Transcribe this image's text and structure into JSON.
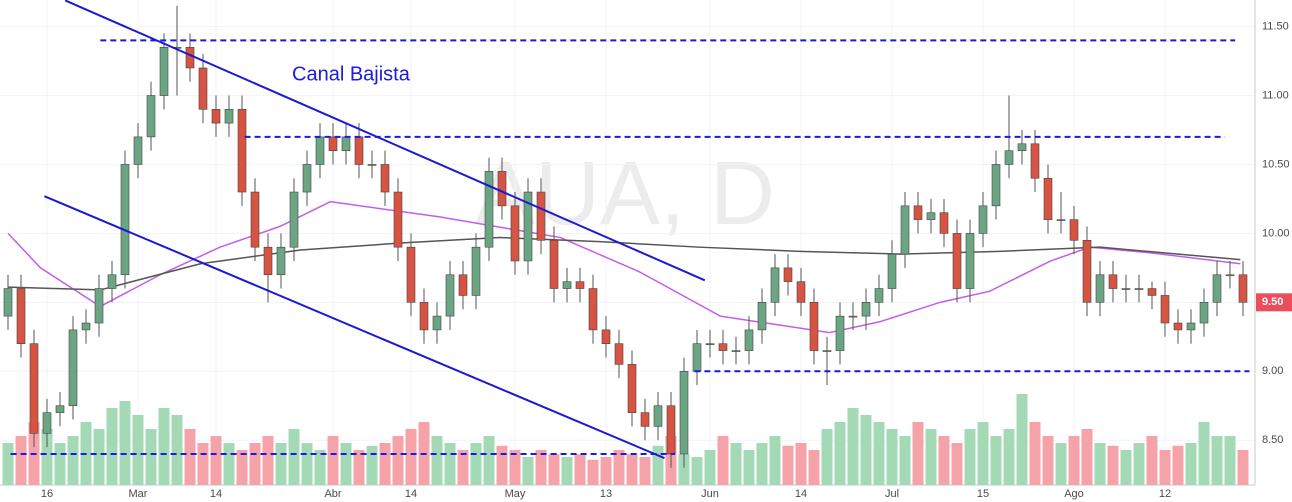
{
  "chart_data": {
    "type": "candlestick",
    "watermark": "AUA, D",
    "annotation": "Canal Bajista",
    "last_price_label": "9.50",
    "open": [
      9.4,
      9.6,
      9.2,
      8.55,
      8.7,
      8.75,
      9.3,
      9.35,
      9.6,
      9.7,
      10.5,
      10.7,
      11.0,
      11.35,
      11.35,
      11.2,
      10.9,
      10.8,
      10.9,
      10.3,
      9.9,
      9.7,
      9.9,
      10.3,
      10.5,
      10.7,
      10.6,
      10.7,
      10.5,
      10.5,
      10.3,
      9.9,
      9.5,
      9.3,
      9.4,
      9.7,
      9.55,
      9.9,
      10.45,
      10.2,
      9.8,
      10.3,
      9.95,
      9.6,
      9.65,
      9.6,
      9.3,
      9.2,
      9.05,
      8.7,
      8.6,
      8.75,
      8.4,
      9.0,
      9.2,
      9.2,
      9.15,
      9.15,
      9.3,
      9.5,
      9.75,
      9.65,
      9.5,
      9.15,
      9.15,
      9.4,
      9.4,
      9.5,
      9.6,
      9.85,
      10.2,
      10.1,
      10.15,
      10.0,
      9.6,
      10.0,
      10.2,
      10.5,
      10.6,
      10.65,
      10.4,
      10.1,
      10.1,
      9.95,
      9.5,
      9.7,
      9.6,
      9.6,
      9.6,
      9.55,
      9.35,
      9.3,
      9.35,
      9.5,
      9.7,
      9.7
    ],
    "high": [
      9.7,
      9.7,
      9.3,
      8.8,
      8.85,
      9.4,
      9.45,
      9.7,
      9.8,
      10.6,
      10.8,
      11.1,
      11.45,
      11.65,
      11.45,
      11.3,
      11.0,
      11.0,
      11.0,
      10.4,
      10.0,
      10.0,
      10.4,
      10.6,
      10.8,
      10.8,
      10.8,
      10.8,
      10.6,
      10.6,
      10.4,
      10.0,
      9.6,
      9.5,
      9.8,
      9.8,
      10.0,
      10.55,
      10.55,
      10.3,
      10.4,
      10.4,
      10.05,
      9.75,
      9.75,
      9.7,
      9.4,
      9.3,
      9.15,
      8.8,
      8.85,
      8.85,
      9.1,
      9.3,
      9.3,
      9.3,
      9.25,
      9.4,
      9.6,
      9.85,
      9.85,
      9.75,
      9.6,
      9.25,
      9.5,
      9.5,
      9.6,
      9.7,
      9.95,
      10.3,
      10.3,
      10.25,
      10.25,
      10.1,
      10.1,
      10.3,
      10.6,
      11.0,
      10.75,
      10.75,
      10.5,
      10.3,
      10.2,
      10.05,
      9.8,
      9.8,
      9.7,
      9.7,
      9.65,
      9.65,
      9.45,
      9.45,
      9.6,
      9.8,
      9.8,
      9.8
    ],
    "low": [
      9.3,
      9.1,
      8.45,
      8.45,
      8.6,
      8.65,
      9.2,
      9.25,
      9.5,
      9.6,
      10.4,
      10.6,
      10.9,
      11.0,
      11.1,
      10.8,
      10.7,
      10.7,
      10.2,
      9.8,
      9.5,
      9.6,
      9.8,
      10.2,
      10.4,
      10.5,
      10.5,
      10.4,
      10.4,
      10.2,
      9.8,
      9.4,
      9.2,
      9.2,
      9.3,
      9.45,
      9.45,
      9.8,
      10.1,
      9.7,
      9.7,
      9.85,
      9.5,
      9.5,
      9.5,
      9.2,
      9.1,
      8.95,
      8.6,
      8.5,
      8.5,
      8.3,
      8.3,
      8.9,
      9.1,
      9.05,
      9.05,
      9.05,
      9.2,
      9.4,
      9.55,
      9.4,
      9.05,
      8.9,
      9.05,
      9.3,
      9.3,
      9.4,
      9.5,
      9.75,
      10.0,
      10.0,
      9.9,
      9.5,
      9.5,
      9.9,
      10.1,
      10.4,
      10.5,
      10.3,
      10.0,
      10.0,
      9.85,
      9.4,
      9.4,
      9.5,
      9.5,
      9.5,
      9.45,
      9.25,
      9.2,
      9.2,
      9.25,
      9.4,
      9.6,
      9.4
    ],
    "close": [
      9.6,
      9.2,
      8.55,
      8.7,
      8.75,
      9.3,
      9.35,
      9.6,
      9.7,
      10.5,
      10.7,
      11.0,
      11.35,
      11.35,
      11.2,
      10.9,
      10.8,
      10.9,
      10.3,
      9.9,
      9.7,
      9.9,
      10.3,
      10.5,
      10.7,
      10.6,
      10.7,
      10.5,
      10.5,
      10.3,
      9.9,
      9.5,
      9.3,
      9.4,
      9.7,
      9.55,
      9.9,
      10.45,
      10.2,
      9.8,
      10.3,
      9.95,
      9.6,
      9.65,
      9.6,
      9.3,
      9.2,
      9.05,
      8.7,
      8.6,
      8.75,
      8.4,
      9.0,
      9.2,
      9.2,
      9.15,
      9.15,
      9.3,
      9.5,
      9.75,
      9.65,
      9.5,
      9.15,
      9.15,
      9.4,
      9.4,
      9.5,
      9.6,
      9.85,
      10.2,
      10.1,
      10.15,
      10.0,
      9.6,
      10.0,
      10.2,
      10.5,
      10.6,
      10.65,
      10.4,
      10.1,
      10.1,
      9.95,
      9.5,
      9.7,
      9.6,
      9.6,
      9.6,
      9.55,
      9.35,
      9.3,
      9.35,
      9.5,
      9.7,
      9.7,
      9.5
    ],
    "volume": [
      30,
      35,
      45,
      40,
      30,
      35,
      45,
      40,
      55,
      60,
      50,
      40,
      55,
      50,
      40,
      30,
      35,
      30,
      25,
      30,
      35,
      30,
      40,
      30,
      25,
      35,
      30,
      25,
      28,
      30,
      35,
      40,
      45,
      35,
      30,
      25,
      30,
      35,
      28,
      25,
      20,
      25,
      22,
      20,
      22,
      18,
      20,
      25,
      22,
      20,
      28,
      35,
      22,
      20,
      25,
      35,
      30,
      25,
      30,
      35,
      28,
      30,
      25,
      40,
      45,
      55,
      50,
      45,
      40,
      35,
      45,
      40,
      35,
      30,
      40,
      45,
      35,
      40,
      65,
      45,
      35,
      30,
      35,
      40,
      30,
      28,
      25,
      30,
      35,
      25,
      28,
      30,
      45,
      35,
      35,
      25
    ],
    "volume_ylim": [
      0,
      100
    ],
    "up_color": "#53b987",
    "down_color": "#eb4d5c",
    "volume_up_color": "#a3d9b5",
    "volume_down_color": "#f5a3a9",
    "series": [
      {
        "color": "#c45ee8",
        "x": [
          0,
          2.5,
          7.1,
          11.7,
          16.3,
          20.9,
          24.8,
          33.2,
          42.5,
          48.6,
          54.8,
          63.2,
          67.1,
          71.7,
          75.5,
          80.2,
          83.2,
          87.8,
          94.8
        ],
        "values": [
          10.0,
          9.75,
          9.47,
          9.7,
          9.9,
          10.05,
          10.23,
          10.12,
          9.97,
          9.72,
          9.4,
          9.28,
          9.36,
          9.5,
          9.58,
          9.8,
          9.9,
          9.86,
          9.78
        ]
      },
      {
        "color": "#555555",
        "x": [
          0,
          7.1,
          14.8,
          22.5,
          30.2,
          37.8,
          45.5,
          53.2,
          60.9,
          68.6,
          76.3,
          84.0,
          94.8
        ],
        "values": [
          9.61,
          9.59,
          9.78,
          9.88,
          9.93,
          9.97,
          9.94,
          9.9,
          9.87,
          9.85,
          9.87,
          9.9,
          9.81
        ]
      }
    ],
    "hlines": [
      {
        "x": [
          7.1,
          94.4
        ],
        "values": [
          11.4,
          11.4
        ]
      },
      {
        "x": [
          18.2,
          93.6
        ],
        "values": [
          10.7,
          10.7
        ]
      },
      {
        "x": [
          52.8,
          95.5
        ],
        "values": [
          9.0,
          9.0
        ]
      },
      {
        "x": [
          0.2,
          51.3
        ],
        "values": [
          8.4,
          8.4
        ]
      }
    ],
    "trendlines": [
      {
        "x": [
          4.4,
          53.6
        ],
        "values": [
          11.69,
          9.66
        ]
      },
      {
        "x": [
          2.8,
          50.5
        ],
        "values": [
          10.27,
          8.37
        ]
      }
    ],
    "ylim": [
      8.175,
      11.693
    ],
    "yticks": [
      {
        "value": 8.5,
        "label": "8.50"
      },
      {
        "value": 9.0,
        "label": "9.00"
      },
      {
        "value": 9.5,
        "label": "9.50"
      },
      {
        "value": 10.0,
        "label": "10.00"
      },
      {
        "value": 10.5,
        "label": "10.50"
      },
      {
        "value": 11.0,
        "label": "11.00"
      },
      {
        "value": 11.5,
        "label": "11.50"
      }
    ],
    "xticks": [
      {
        "value": 3,
        "label": "16"
      },
      {
        "value": 10,
        "label": "Mar"
      },
      {
        "value": 16,
        "label": "14"
      },
      {
        "value": 25,
        "label": "Abr"
      },
      {
        "value": 31,
        "label": "14"
      },
      {
        "value": 39,
        "label": "May"
      },
      {
        "value": 46,
        "label": "13"
      },
      {
        "value": 54,
        "label": "Jun"
      },
      {
        "value": 61,
        "label": "14"
      },
      {
        "value": 68,
        "label": "Jul"
      },
      {
        "value": 75,
        "label": "15"
      },
      {
        "value": 82,
        "label": "Ago"
      },
      {
        "value": 89,
        "label": "12"
      }
    ],
    "grid": true
  }
}
